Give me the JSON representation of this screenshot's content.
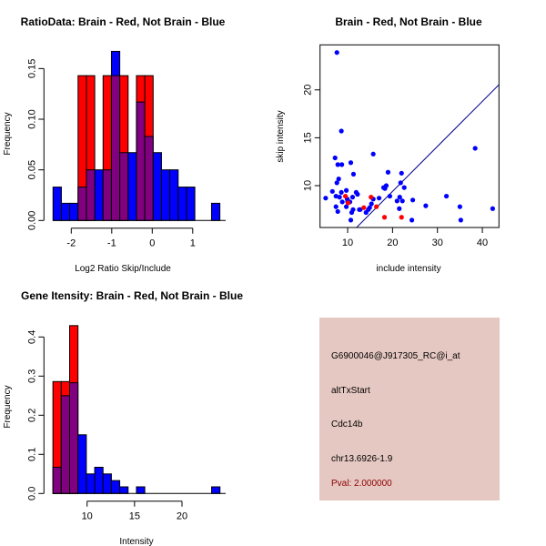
{
  "colors": {
    "red": "#ff0000",
    "blue": "#0000ff",
    "overlap": "#800080",
    "panel": "#e6c8c2",
    "pval": "#8b0000"
  },
  "chart_data": [
    {
      "type": "bar",
      "subtype": "overlaid-histogram",
      "title": "RatioData: Brain - Red, Not Brain - Blue",
      "xlabel": "Log2 Ratio Skip/Include",
      "ylabel": "Frequency",
      "bin_start": -2.45,
      "bin_width": 0.206,
      "xticks": [
        -2,
        -1,
        0,
        1
      ],
      "yticks": [
        0.0,
        0.05,
        0.1,
        0.15
      ],
      "ytick_labels": [
        "0.00",
        "0.05",
        "0.10",
        "0.15"
      ],
      "series": [
        {
          "name": "Not Brain",
          "color": "blue",
          "values": [
            0.033,
            0.017,
            0.017,
            0.033,
            0.05,
            0.05,
            0.05,
            0.167,
            0.067,
            0.067,
            0.117,
            0.083,
            0.067,
            0.05,
            0.05,
            0.033,
            0.033,
            0,
            0,
            0.017
          ]
        },
        {
          "name": "Brain",
          "color": "red",
          "values": [
            0,
            0,
            0,
            0.143,
            0.143,
            0,
            0.143,
            0.143,
            0.143,
            0,
            0.143,
            0.143,
            0,
            0,
            0,
            0,
            0,
            0,
            0,
            0
          ]
        }
      ]
    },
    {
      "type": "scatter",
      "title": "Brain - Red, Not Brain - Blue",
      "xlabel": "include intensity",
      "ylabel": "skip intensity",
      "xlim": [
        3.85,
        43.7
      ],
      "ylim": [
        5.63,
        24.7
      ],
      "xticks": [
        10,
        20,
        30,
        40
      ],
      "yticks": [
        10,
        15,
        20
      ],
      "line": {
        "slope": 0.47,
        "intercept": 0
      },
      "series": [
        {
          "name": "Not Brain",
          "color": "blue",
          "points": [
            [
              7.6,
              23.9
            ],
            [
              8.6,
              15.7
            ],
            [
              15.7,
              13.3
            ],
            [
              38.4,
              13.9
            ],
            [
              7.2,
              12.9
            ],
            [
              7.8,
              12.2
            ],
            [
              8.7,
              12.2
            ],
            [
              10.7,
              12.4
            ],
            [
              11.3,
              11.2
            ],
            [
              19.0,
              11.4
            ],
            [
              22.0,
              11.3
            ],
            [
              8.0,
              10.7
            ],
            [
              7.6,
              10.3
            ],
            [
              21.8,
              10.3
            ],
            [
              18.6,
              10.0
            ],
            [
              18.0,
              9.8
            ],
            [
              18.3,
              9.7
            ],
            [
              22.6,
              9.8
            ],
            [
              6.6,
              9.4
            ],
            [
              8.6,
              9.3
            ],
            [
              9.7,
              9.5
            ],
            [
              5.1,
              8.7
            ],
            [
              7.4,
              8.9
            ],
            [
              8.2,
              8.8
            ],
            [
              9.9,
              8.6
            ],
            [
              11.1,
              8.8
            ],
            [
              11.9,
              9.3
            ],
            [
              12.2,
              9.1
            ],
            [
              10.5,
              8.3
            ],
            [
              10.0,
              8.3
            ],
            [
              8.8,
              8.3
            ],
            [
              7.4,
              7.8
            ],
            [
              9.7,
              7.8
            ],
            [
              7.8,
              7.3
            ],
            [
              17.0,
              8.7
            ],
            [
              15.7,
              8.6
            ],
            [
              19.4,
              8.9
            ],
            [
              21.0,
              8.4
            ],
            [
              21.6,
              8.8
            ],
            [
              22.2,
              8.4
            ],
            [
              21.5,
              7.6
            ],
            [
              24.5,
              8.5
            ],
            [
              27.4,
              7.9
            ],
            [
              32.0,
              8.9
            ],
            [
              35.0,
              7.8
            ],
            [
              42.3,
              7.6
            ],
            [
              11.2,
              7.5
            ],
            [
              10.9,
              7.2
            ],
            [
              12.8,
              7.5
            ],
            [
              12.6,
              7.5
            ],
            [
              14.1,
              7.2
            ],
            [
              14.6,
              7.5
            ],
            [
              14.9,
              7.7
            ],
            [
              15.3,
              8.1
            ],
            [
              10.7,
              6.4
            ],
            [
              24.3,
              6.4
            ],
            [
              35.2,
              6.4
            ]
          ]
        },
        {
          "name": "Brain",
          "color": "red",
          "points": [
            [
              9.5,
              8.9
            ],
            [
              10.1,
              8.2
            ],
            [
              13.6,
              7.7
            ],
            [
              15.2,
              8.8
            ],
            [
              16.4,
              7.8
            ],
            [
              18.2,
              6.7
            ],
            [
              22.0,
              6.7
            ]
          ]
        }
      ]
    },
    {
      "type": "bar",
      "subtype": "overlaid-histogram",
      "title": "Gene Itensity: Brain - Red, Not Brain - Blue",
      "xlabel": "Intensity",
      "ylabel": "Frequency",
      "bin_start": 6.4,
      "bin_width": 0.88,
      "xticks": [
        10,
        15,
        20
      ],
      "yticks": [
        0.0,
        0.1,
        0.2,
        0.3,
        0.4
      ],
      "ytick_labels": [
        "0.0",
        "0.1",
        "0.2",
        "0.3",
        "0.4"
      ],
      "series": [
        {
          "name": "Not Brain",
          "color": "blue",
          "values": [
            0.067,
            0.25,
            0.283,
            0.15,
            0.05,
            0.067,
            0.05,
            0.033,
            0.017,
            0,
            0.017,
            0,
            0,
            0,
            0,
            0,
            0,
            0,
            0,
            0.017
          ]
        },
        {
          "name": "Brain",
          "color": "red",
          "values": [
            0.286,
            0.286,
            0.429,
            0,
            0,
            0,
            0,
            0,
            0,
            0,
            0,
            0,
            0,
            0,
            0,
            0,
            0,
            0,
            0,
            0
          ]
        }
      ]
    }
  ],
  "info": {
    "probe": "G6900046@J917305_RC@i_at",
    "event": "altTxStart",
    "gene": "Cdc14b",
    "location": "chr13.6926-1.9",
    "pval": "Pval: 2.000000"
  }
}
